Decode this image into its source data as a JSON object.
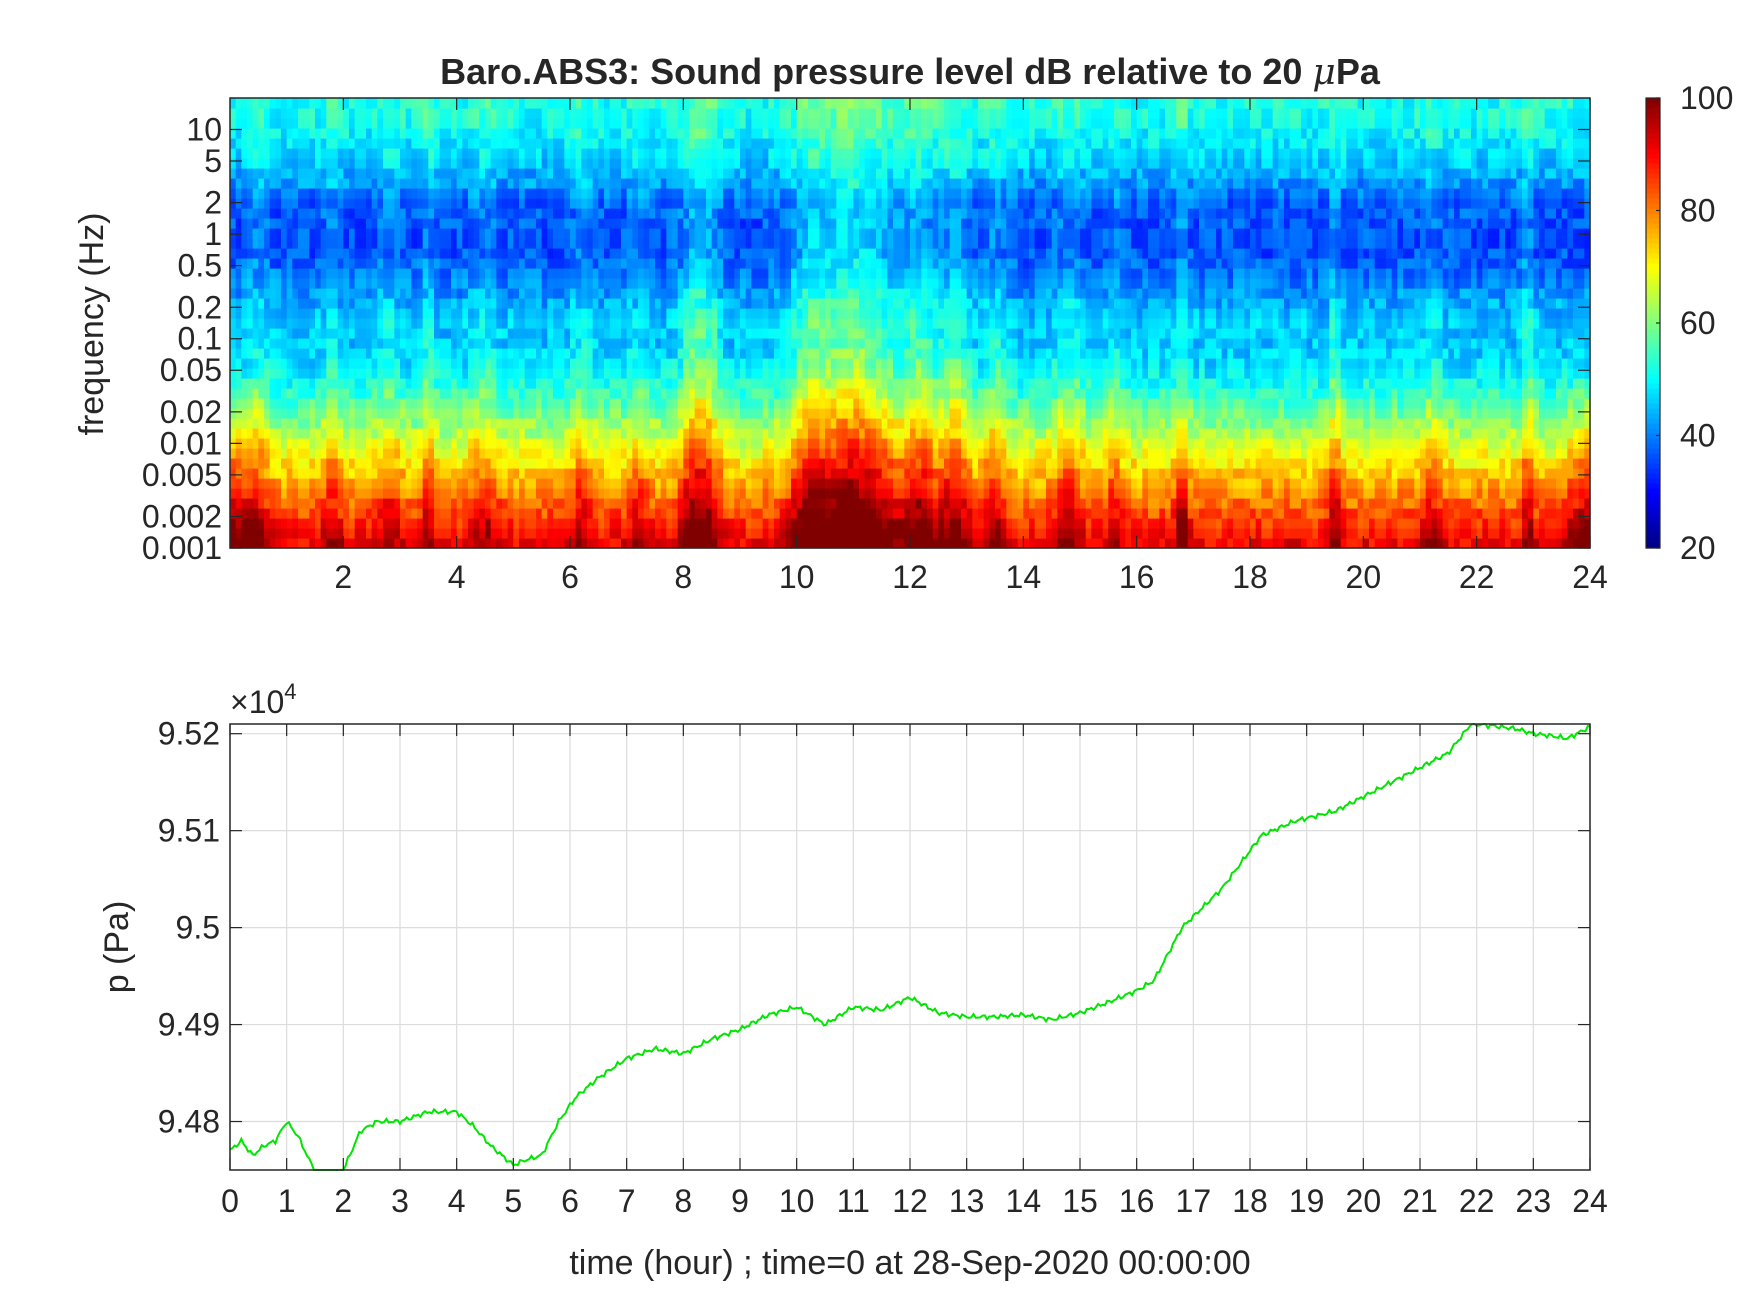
{
  "figure": {
    "background": "#ffffff",
    "axis_color": "#262626",
    "grid_color": "#dcdcdc"
  },
  "chart_data": [
    {
      "type": "heatmap",
      "title": "Baro.ABS3: Sound pressure level dB relative to 20 ",
      "title_mu": "μ",
      "title_suffix": "Pa",
      "xlabel": "",
      "ylabel": "frequency (Hz)",
      "xlim": [
        0,
        24
      ],
      "ylim": [
        0.001,
        20
      ],
      "y_scale": "log",
      "x_ticks": [
        2,
        4,
        6,
        8,
        10,
        12,
        14,
        16,
        18,
        20,
        22,
        24
      ],
      "x_tick_labels": [
        "2",
        "4",
        "6",
        "8",
        "10",
        "12",
        "14",
        "16",
        "18",
        "20",
        "22",
        "24"
      ],
      "y_ticks": [
        10,
        5,
        2,
        1,
        0.5,
        0.2,
        0.1,
        0.05,
        0.02,
        0.01,
        0.005,
        0.002,
        0.001
      ],
      "y_tick_labels": [
        "10",
        "5",
        "2",
        "1",
        "0.5",
        "0.2",
        "0.1",
        "0.05",
        "0.02",
        "0.01",
        "0.005",
        "0.002",
        "0.001"
      ],
      "colormap": "jet",
      "clim": [
        20,
        100
      ],
      "colorbar_ticks": [
        20,
        40,
        60,
        80,
        100
      ],
      "colorbar_tick_labels": [
        "20",
        "40",
        "60",
        "80",
        "100"
      ],
      "colorbar_location": "right",
      "grid": false,
      "bursts": [
        {
          "t": 0.5,
          "w": 0.2,
          "a": 10,
          "reach": 0.45
        },
        {
          "t": 1.8,
          "w": 0.15,
          "a": 10,
          "reach": 0.55
        },
        {
          "t": 2.8,
          "w": 0.2,
          "a": 9,
          "reach": 0.55
        },
        {
          "t": 3.5,
          "w": 0.12,
          "a": 11,
          "reach": 0.7
        },
        {
          "t": 4.5,
          "w": 0.25,
          "a": 9,
          "reach": 0.6
        },
        {
          "t": 6.2,
          "w": 0.2,
          "a": 9,
          "reach": 0.6
        },
        {
          "t": 7.2,
          "w": 0.2,
          "a": 8,
          "reach": 0.5
        },
        {
          "t": 8.2,
          "w": 0.25,
          "a": 17,
          "reach": 0.85
        },
        {
          "t": 8.5,
          "w": 0.2,
          "a": 10,
          "reach": 0.9
        },
        {
          "t": 10.2,
          "w": 0.3,
          "a": 12,
          "reach": 0.8
        },
        {
          "t": 11.0,
          "w": 0.8,
          "a": 22,
          "reach": 0.9
        },
        {
          "t": 12.2,
          "w": 0.3,
          "a": 14,
          "reach": 0.8
        },
        {
          "t": 12.8,
          "w": 0.25,
          "a": 15,
          "reach": 0.8
        },
        {
          "t": 13.5,
          "w": 0.2,
          "a": 11,
          "reach": 0.7
        },
        {
          "t": 14.8,
          "w": 0.25,
          "a": 11,
          "reach": 0.65
        },
        {
          "t": 15.6,
          "w": 0.15,
          "a": 9,
          "reach": 0.55
        },
        {
          "t": 16.8,
          "w": 0.12,
          "a": 14,
          "reach": 0.55
        },
        {
          "t": 19.5,
          "w": 0.12,
          "a": 12,
          "reach": 0.6
        },
        {
          "t": 21.2,
          "w": 0.2,
          "a": 8,
          "reach": 0.5
        },
        {
          "t": 22.9,
          "w": 0.1,
          "a": 13,
          "reach": 0.65
        }
      ]
    },
    {
      "type": "line",
      "title": "",
      "xlabel": "time (hour) ; time=0 at 28-Sep-2020 00:00:00",
      "ylabel": "p (Pa)",
      "exponent_label": "×10",
      "exponent": "4",
      "xlim": [
        0,
        24
      ],
      "ylim": [
        94750,
        95210
      ],
      "x_ticks": [
        0,
        1,
        2,
        3,
        4,
        5,
        6,
        7,
        8,
        9,
        10,
        11,
        12,
        13,
        14,
        15,
        16,
        17,
        18,
        19,
        20,
        21,
        22,
        23,
        24
      ],
      "x_tick_labels": [
        "0",
        "1",
        "2",
        "3",
        "4",
        "5",
        "6",
        "7",
        "8",
        "9",
        "10",
        "11",
        "12",
        "13",
        "14",
        "15",
        "16",
        "17",
        "18",
        "19",
        "20",
        "21",
        "22",
        "23",
        "24"
      ],
      "y_ticks": [
        94800,
        94900,
        95000,
        95100,
        95200
      ],
      "y_tick_labels": [
        "9.48",
        "9.49",
        "9.5",
        "9.51",
        "9.52"
      ],
      "grid": true,
      "line_color": "#00e600",
      "series": [
        {
          "x": [
            0,
            0.2,
            0.4,
            0.6,
            0.8,
            1.0,
            1.2,
            1.4,
            1.6,
            1.8,
            2.0,
            2.3,
            2.6,
            3.0,
            3.5,
            4.0,
            4.3,
            4.6,
            5.0,
            5.2,
            5.5,
            5.8,
            6.1,
            6.5,
            7.0,
            7.5,
            8.0,
            8.5,
            9.0,
            9.5,
            10.0,
            10.5,
            11.0,
            11.5,
            12.0,
            12.5,
            13.0,
            13.5,
            14.0,
            14.5,
            15.0,
            15.5,
            16.0,
            16.3,
            16.8,
            17.5,
            18.2,
            18.8,
            19.5,
            20.0,
            20.5,
            21.0,
            21.5,
            21.9,
            22.3,
            22.7,
            23.0,
            23.3,
            23.6,
            24.0
          ],
          "y": [
            94770,
            94780,
            94765,
            94775,
            94780,
            94800,
            94785,
            94760,
            94740,
            94745,
            94750,
            94790,
            94800,
            94800,
            94810,
            94810,
            94795,
            94775,
            94755,
            94760,
            94765,
            94800,
            94825,
            94845,
            94865,
            94875,
            94870,
            94885,
            94895,
            94910,
            94918,
            94900,
            94918,
            94915,
            94928,
            94912,
            94908,
            94908,
            94910,
            94905,
            94912,
            94923,
            94935,
            94945,
            95000,
            95040,
            95095,
            95110,
            95120,
            95135,
            95150,
            95165,
            95180,
            95210,
            95208,
            95205,
            95200,
            95198,
            95195,
            95207
          ]
        }
      ]
    }
  ]
}
